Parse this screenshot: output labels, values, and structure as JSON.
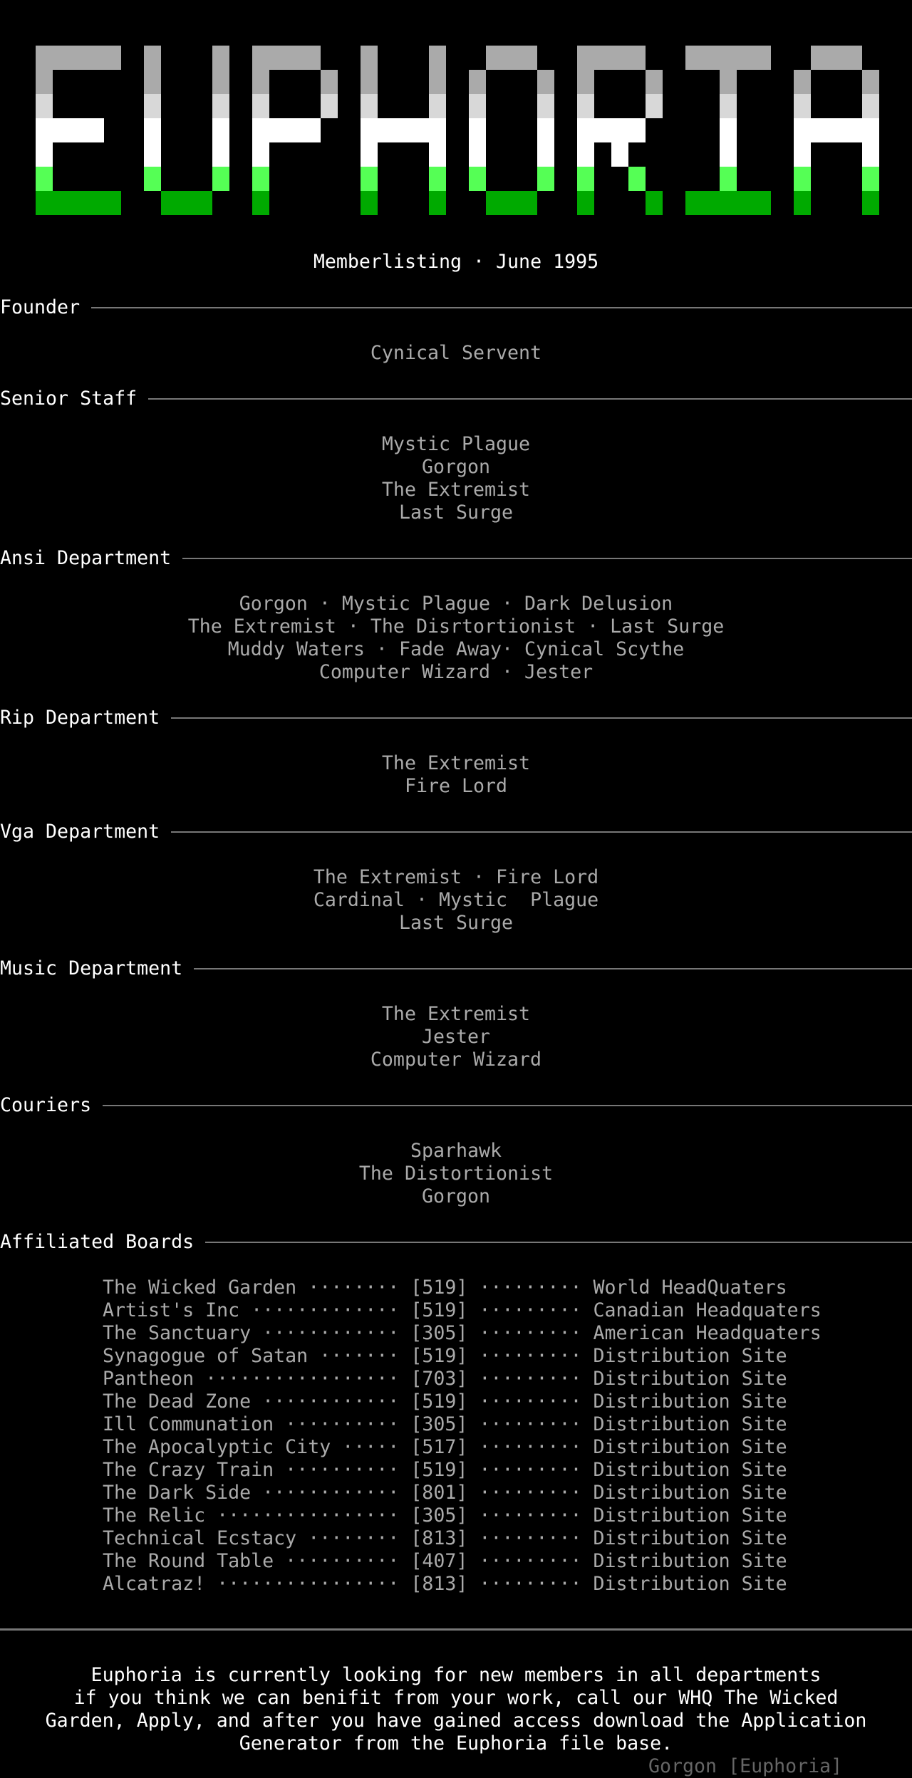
{
  "logo": {
    "text": "EUPHORIA",
    "colors": {
      "top": "#aaaaaa",
      "mid": "#d8d8d8",
      "white": "#ffffff",
      "green": "#55ff55",
      "dark_green": "#00aa00"
    }
  },
  "subtitle": "Memberlisting · June 1995",
  "sections": [
    {
      "title": "Founder",
      "lines": [
        "Cynical Servent"
      ]
    },
    {
      "title": "Senior Staff",
      "lines": [
        "Mystic Plague",
        "Gorgon",
        "The Extremist",
        "Last Surge"
      ]
    },
    {
      "title": "Ansi Department",
      "lines": [
        "Gorgon · Mystic Plague · Dark Delusion",
        "The Extremist · The Disrtortionist · Last Surge",
        "Muddy Waters · Fade Away· Cynical Scythe",
        "Computer Wizard · Jester"
      ]
    },
    {
      "title": "Rip Department",
      "lines": [
        "The Extremist",
        "Fire Lord"
      ]
    },
    {
      "title": "Vga Department",
      "lines": [
        "The Extremist · Fire Lord",
        "Cardinal · Mystic  Plague",
        "Last Surge"
      ]
    },
    {
      "title": "Music Department",
      "lines": [
        "The Extremist",
        "Jester",
        "Computer Wizard"
      ]
    },
    {
      "title": "Couriers",
      "lines": [
        "Sparhawk",
        "The Distortionist",
        "Gorgon"
      ]
    },
    {
      "title": "Affiliated Boards",
      "lines": []
    }
  ],
  "boards": [
    {
      "name": "The Wicked Garden",
      "code": "[519]",
      "role": "World HeadQuaters"
    },
    {
      "name": "Artist's Inc",
      "code": "[519]",
      "role": "Canadian Headquaters"
    },
    {
      "name": "The Sanctuary",
      "code": "[305]",
      "role": "American Headquaters"
    },
    {
      "name": "Synagogue of Satan",
      "code": "[519]",
      "role": "Distribution Site"
    },
    {
      "name": "Pantheon",
      "code": "[703]",
      "role": "Distribution Site"
    },
    {
      "name": "The Dead Zone",
      "code": "[519]",
      "role": "Distribution Site"
    },
    {
      "name": "Ill Communation",
      "code": "[305]",
      "role": "Distribution Site"
    },
    {
      "name": "The Apocalyptic City",
      "code": "[517]",
      "role": "Distribution Site"
    },
    {
      "name": "The Crazy Train",
      "code": "[519]",
      "role": "Distribution Site"
    },
    {
      "name": "The Dark Side",
      "code": "[801]",
      "role": "Distribution Site"
    },
    {
      "name": "The Relic",
      "code": "[305]",
      "role": "Distribution Site"
    },
    {
      "name": "Technical Ecstacy",
      "code": "[813]",
      "role": "Distribution Site"
    },
    {
      "name": "The Round Table",
      "code": "[407]",
      "role": "Distribution Site"
    },
    {
      "name": "Alcatraz!",
      "code": "[813]",
      "role": "Distribution Site"
    }
  ],
  "footer": {
    "lines": [
      "Euphoria is currently looking for new members in all departments",
      "if you think we can benifit from your work, call our WHQ The Wicked",
      "Garden, Apply, and after you have gained access download the Application",
      "Generator from the Euphoria file base."
    ],
    "signature": "Gorgon [Euphoria]"
  }
}
